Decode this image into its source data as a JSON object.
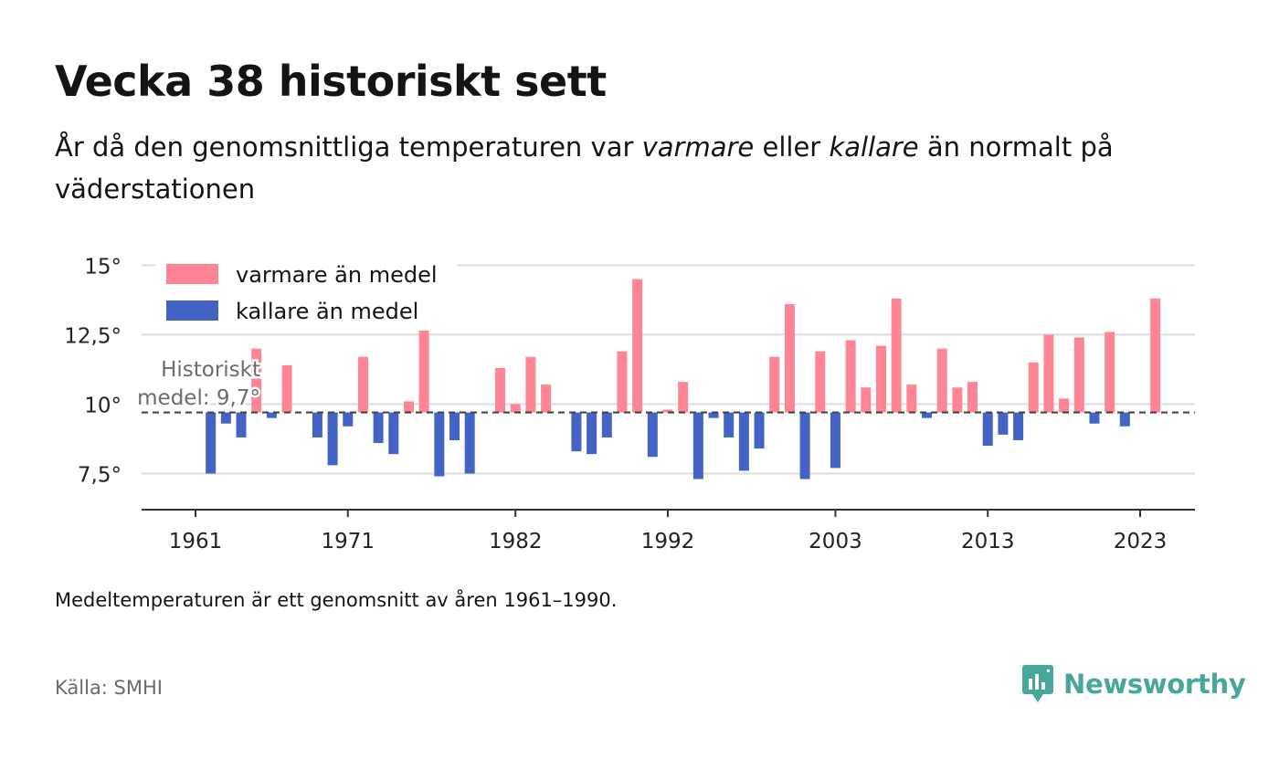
{
  "header": {
    "title": "Vecka 38 historiskt sett",
    "subtitle_parts": [
      "År då den genomsnittliga temperaturen var ",
      "varmare",
      " eller ",
      "kallare",
      " än normalt på väderstationen"
    ]
  },
  "footer": {
    "note": "Medeltemperaturen är ett genomsnitt av åren 1961–1990.",
    "source": "Källa: SMHI",
    "brand": "Newsworthy"
  },
  "colors": {
    "warm": "#ff8595",
    "cold": "#4464c5",
    "brand": "#47a79c"
  },
  "chart_data": {
    "type": "bar",
    "baseline": 9.7,
    "baseline_label": [
      "Historiskt",
      "medel: 9,7°"
    ],
    "ylim": [
      6.2,
      16
    ],
    "y_ticks": [
      7.5,
      10,
      12.5,
      15
    ],
    "y_tick_labels": [
      "7,5°",
      "10°",
      "12,5°",
      "15°"
    ],
    "x_ticks": [
      1961,
      1971,
      1982,
      1992,
      2003,
      2013,
      2023
    ],
    "grid": true,
    "legend": {
      "position": "top-left",
      "items": [
        {
          "label": "varmare än medel",
          "color": "#ff8595"
        },
        {
          "label": "kallare än medel",
          "color": "#4464c5"
        }
      ]
    },
    "series": [
      {
        "year": 1962,
        "value": 7.5
      },
      {
        "year": 1963,
        "value": 9.3
      },
      {
        "year": 1964,
        "value": 8.8
      },
      {
        "year": 1965,
        "value": 12.0
      },
      {
        "year": 1966,
        "value": 9.5
      },
      {
        "year": 1967,
        "value": 11.4
      },
      {
        "year": 1969,
        "value": 8.8
      },
      {
        "year": 1970,
        "value": 7.8
      },
      {
        "year": 1971,
        "value": 9.2
      },
      {
        "year": 1972,
        "value": 11.7
      },
      {
        "year": 1973,
        "value": 8.6
      },
      {
        "year": 1974,
        "value": 8.2
      },
      {
        "year": 1975,
        "value": 10.1
      },
      {
        "year": 1976,
        "value": 12.9
      },
      {
        "year": 1977,
        "value": 7.4
      },
      {
        "year": 1978,
        "value": 8.7
      },
      {
        "year": 1979,
        "value": 7.5
      },
      {
        "year": 1981,
        "value": 11.3
      },
      {
        "year": 1982,
        "value": 10.0
      },
      {
        "year": 1983,
        "value": 11.7
      },
      {
        "year": 1984,
        "value": 10.7
      },
      {
        "year": 1986,
        "value": 8.3
      },
      {
        "year": 1987,
        "value": 8.2
      },
      {
        "year": 1988,
        "value": 8.8
      },
      {
        "year": 1989,
        "value": 11.9
      },
      {
        "year": 1990,
        "value": 14.5
      },
      {
        "year": 1991,
        "value": 8.1
      },
      {
        "year": 1992,
        "value": 9.8
      },
      {
        "year": 1993,
        "value": 10.8
      },
      {
        "year": 1994,
        "value": 7.3
      },
      {
        "year": 1995,
        "value": 9.5
      },
      {
        "year": 1996,
        "value": 8.8
      },
      {
        "year": 1997,
        "value": 7.6
      },
      {
        "year": 1998,
        "value": 8.4
      },
      {
        "year": 1999,
        "value": 11.7
      },
      {
        "year": 2000,
        "value": 13.6
      },
      {
        "year": 2001,
        "value": 7.3
      },
      {
        "year": 2002,
        "value": 11.9
      },
      {
        "year": 2003,
        "value": 7.7
      },
      {
        "year": 2004,
        "value": 12.3
      },
      {
        "year": 2005,
        "value": 10.6
      },
      {
        "year": 2006,
        "value": 12.1
      },
      {
        "year": 2007,
        "value": 13.8
      },
      {
        "year": 2008,
        "value": 10.7
      },
      {
        "year": 2009,
        "value": 9.5
      },
      {
        "year": 2010,
        "value": 12.0
      },
      {
        "year": 2011,
        "value": 10.6
      },
      {
        "year": 2012,
        "value": 10.8
      },
      {
        "year": 2013,
        "value": 8.5
      },
      {
        "year": 2014,
        "value": 8.9
      },
      {
        "year": 2015,
        "value": 8.7
      },
      {
        "year": 2016,
        "value": 11.5
      },
      {
        "year": 2017,
        "value": 12.5
      },
      {
        "year": 2018,
        "value": 10.2
      },
      {
        "year": 2019,
        "value": 12.4
      },
      {
        "year": 2020,
        "value": 9.3
      },
      {
        "year": 2021,
        "value": 12.6
      },
      {
        "year": 2022,
        "value": 9.2
      },
      {
        "year": 2024,
        "value": 13.8
      }
    ]
  }
}
